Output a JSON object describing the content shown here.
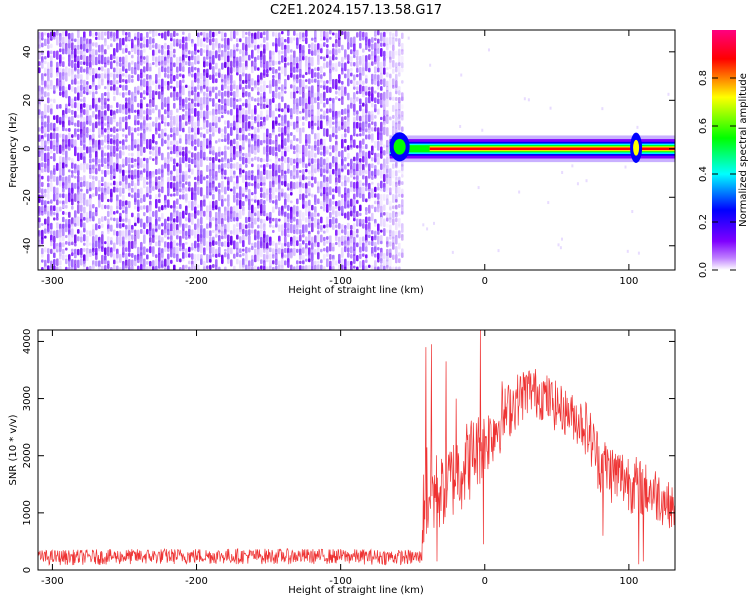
{
  "title": "C2E1.2024.157.13.58.G17",
  "chart_data": [
    {
      "type": "heatmap",
      "xlabel": "Height of straight line (km)",
      "ylabel": "Frequency (Hz)",
      "xlim": [
        -310,
        132
      ],
      "ylim": [
        -50,
        49
      ],
      "xticks": [
        -300,
        -200,
        -100,
        0,
        100
      ],
      "xtick_labels": [
        "-300",
        "-200",
        "-100",
        "0",
        "100"
      ],
      "yticks": [
        -40,
        -20,
        0,
        20,
        40
      ],
      "ytick_labels": [
        "-40",
        "-20",
        "0",
        "20",
        "40"
      ],
      "noise_region_x": [
        -310,
        -62
      ],
      "signal_band_x": [
        -66,
        132
      ],
      "signal_center_freq_hz": 0,
      "signal_band_halfwidth_hz": 2.5,
      "colorbar": {
        "label": "Normalized spectral amplitude",
        "range": [
          0.0,
          1.0
        ],
        "ticks": [
          0.0,
          0.2,
          0.4,
          0.6,
          0.8
        ],
        "tick_labels": [
          "0.0",
          "0.2",
          "0.4",
          "0.6",
          "0.8"
        ],
        "colors": [
          "#ffffff",
          "#7f00ff",
          "#0000ff",
          "#00ffff",
          "#00ff00",
          "#ffff00",
          "#ff0000",
          "#ff0080"
        ]
      },
      "grid": false
    },
    {
      "type": "line",
      "xlabel": "Height of straight line (km)",
      "ylabel": "SNR (10 * v/v)",
      "xlim": [
        -310,
        132
      ],
      "ylim": [
        0,
        4200
      ],
      "xticks": [
        -300,
        -200,
        -100,
        0,
        100
      ],
      "xtick_labels": [
        "-300",
        "-200",
        "-100",
        "0",
        "100"
      ],
      "yticks": [
        0,
        1000,
        2000,
        3000,
        4000
      ],
      "ytick_labels": [
        "0",
        "1000",
        "2000",
        "3000",
        "4000"
      ],
      "color": "#ee3333",
      "envelope": {
        "x": [
          -310,
          -200,
          -100,
          -44,
          -42,
          -38,
          -30,
          -20,
          -10,
          0,
          10,
          20,
          30,
          40,
          50,
          60,
          70,
          80,
          90,
          100,
          110,
          120,
          132
        ],
        "lower": [
          80,
          100,
          100,
          80,
          300,
          400,
          700,
          900,
          1200,
          1600,
          2000,
          2400,
          2700,
          2600,
          2400,
          2300,
          2000,
          1300,
          1100,
          1000,
          900,
          800,
          700
        ],
        "upper": [
          350,
          380,
          370,
          350,
          2400,
          2200,
          2000,
          2400,
          2700,
          2800,
          3100,
          3400,
          3600,
          3500,
          3300,
          3100,
          3000,
          2400,
          2200,
          2100,
          1900,
          1800,
          1400
        ]
      },
      "spikes": [
        {
          "x": -41,
          "value": 3900
        },
        {
          "x": -37,
          "value": 3950
        },
        {
          "x": -33,
          "value": 150
        },
        {
          "x": -27,
          "value": 3650
        },
        {
          "x": -20,
          "value": 3000
        },
        {
          "x": -3,
          "value": 4200
        },
        {
          "x": -1,
          "value": 450
        },
        {
          "x": 12,
          "value": 3300
        },
        {
          "x": 82,
          "value": 600
        },
        {
          "x": 107,
          "value": 100
        },
        {
          "x": 110,
          "value": 150
        }
      ],
      "grid": false
    }
  ]
}
